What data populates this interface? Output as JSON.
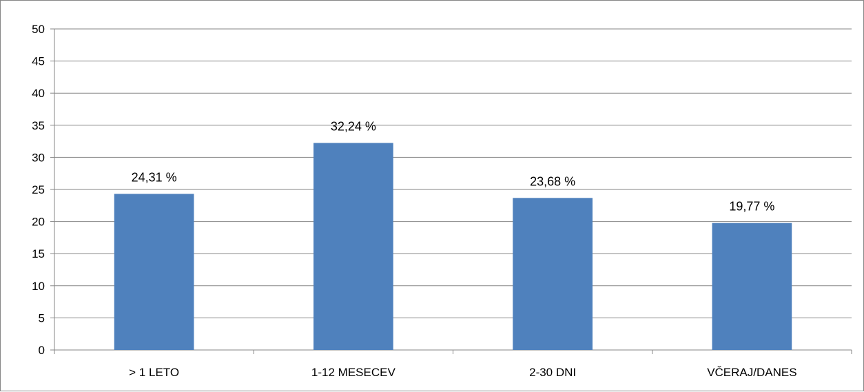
{
  "chart_data": {
    "type": "bar",
    "title": "",
    "xlabel": "",
    "ylabel": "",
    "categories": [
      "> 1 LETO",
      "1-12 MESECEV",
      "2-30 DNI",
      "VČERAJ/DANES"
    ],
    "values": [
      24.31,
      32.24,
      23.68,
      19.77
    ],
    "data_labels": [
      "24,31 %",
      "32,24 %",
      "23,68 %",
      "19,77 %"
    ],
    "ylim": [
      0,
      50
    ],
    "yticks": [
      "0",
      "5",
      "10",
      "15",
      "20",
      "25",
      "30",
      "35",
      "40",
      "45",
      "50"
    ],
    "grid": true,
    "legend": "none",
    "bar_color": "#4F81BD",
    "grid_color": "#868686"
  }
}
